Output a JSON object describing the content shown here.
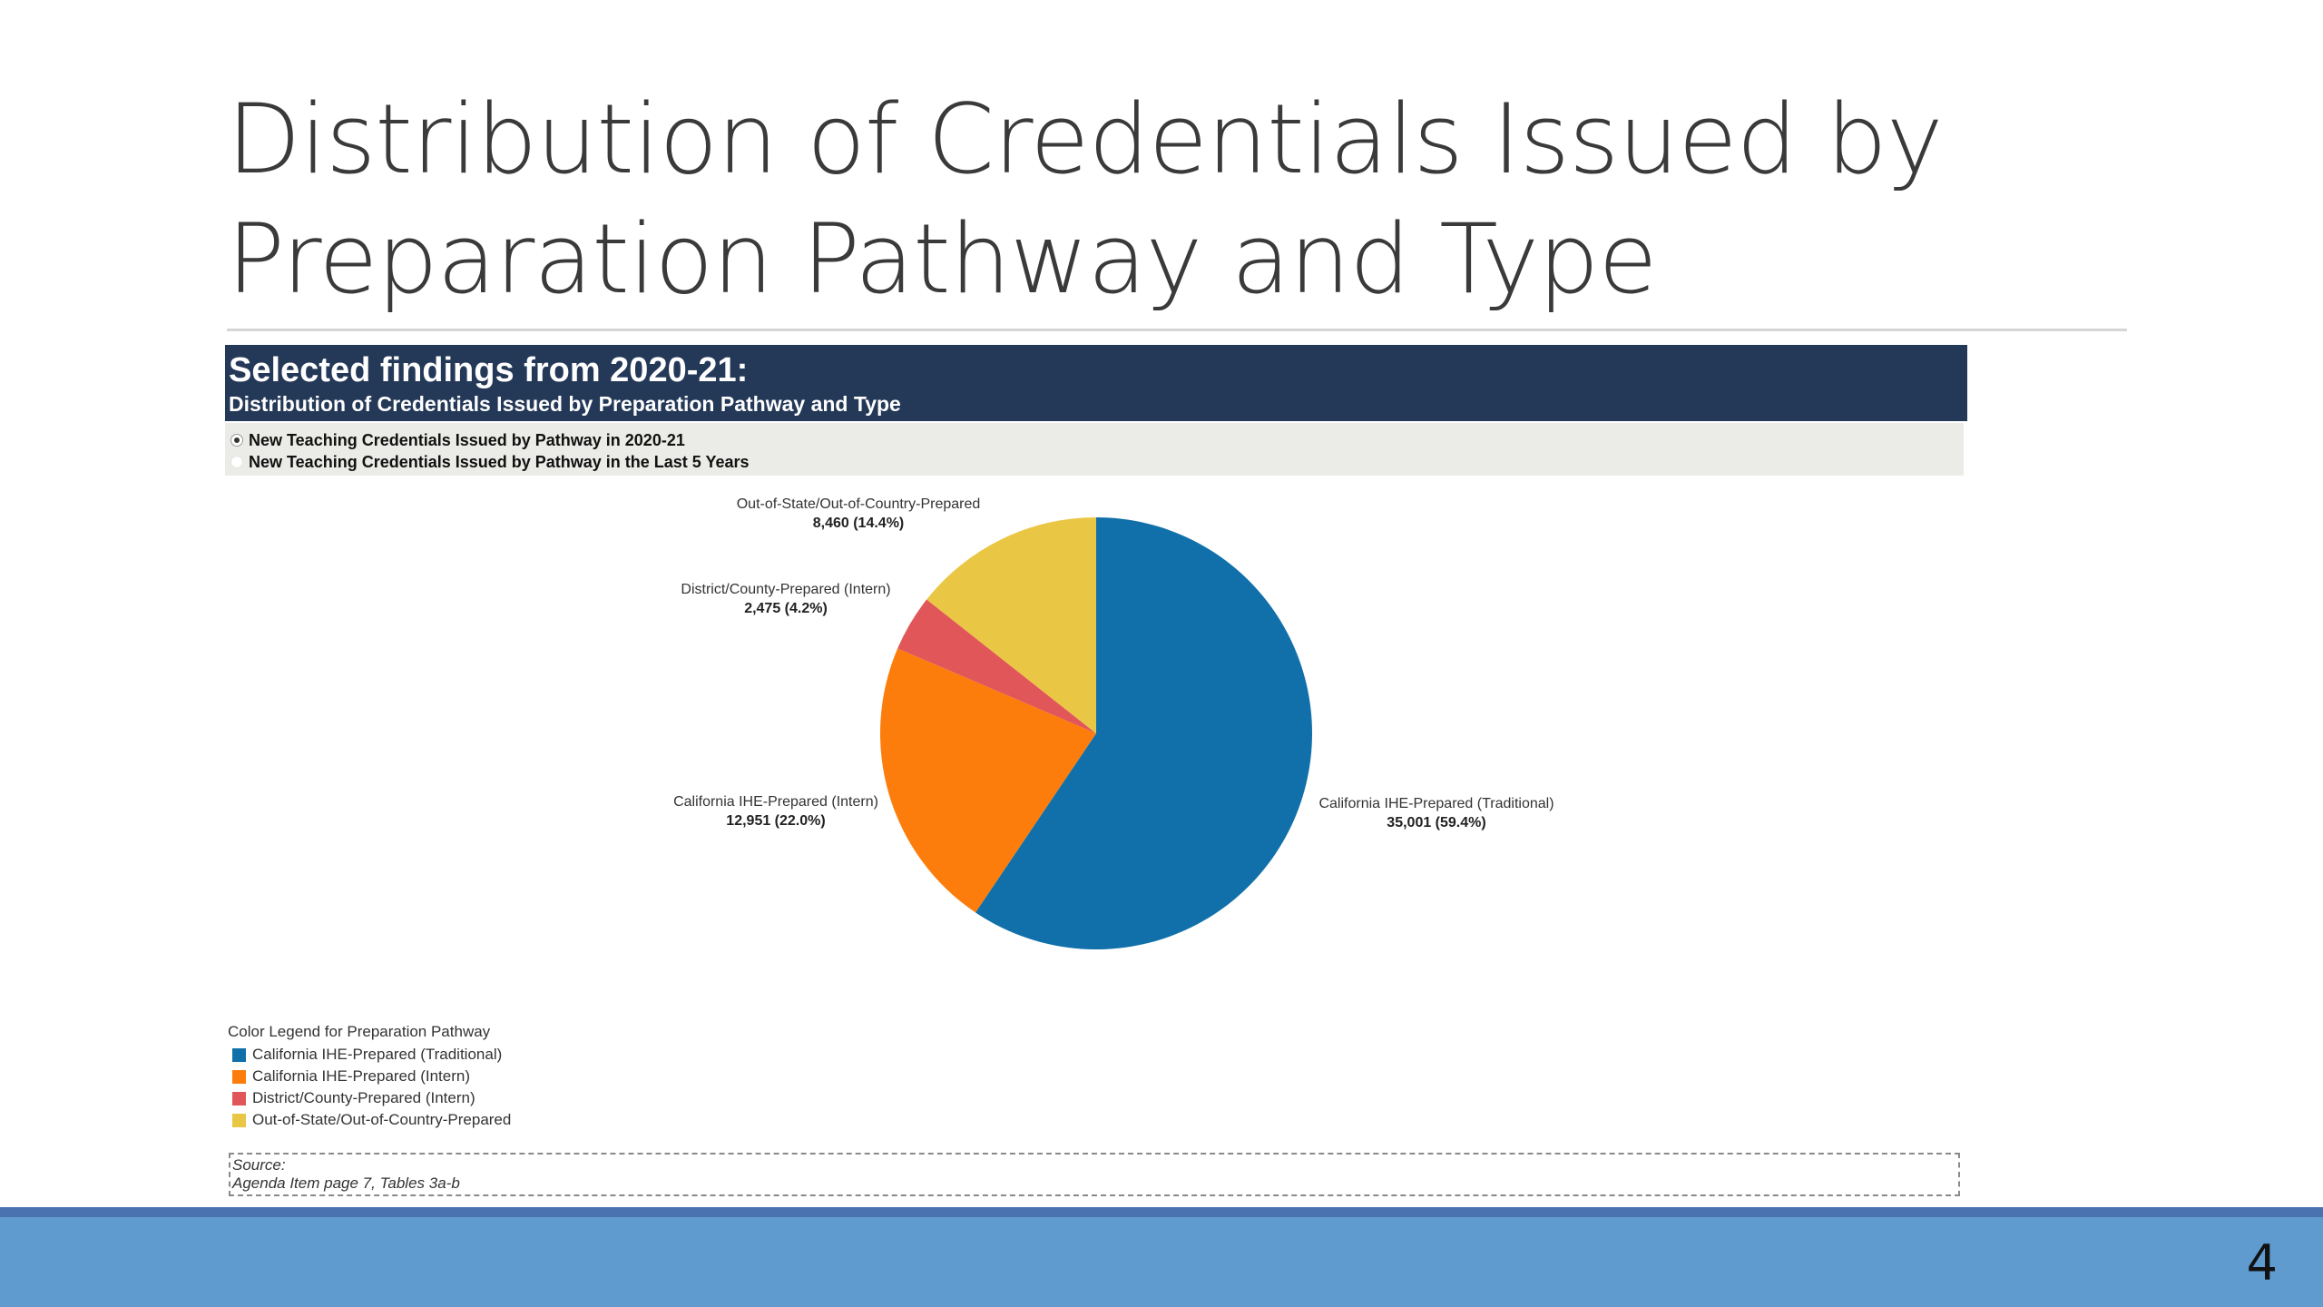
{
  "slide": {
    "title_line1": "Distribution of Credentials Issued by",
    "title_line2": "Preparation Pathway and Type",
    "page_number": "4"
  },
  "panel": {
    "heading": "Selected findings from 2020-21:",
    "subheading": "Distribution of Credentials Issued by Preparation Pathway and Type",
    "options": [
      {
        "label": "New Teaching Credentials Issued by Pathway in 2020-21",
        "selected": true
      },
      {
        "label": "New Teaching Credentials Issued by Pathway in the Last 5 Years",
        "selected": false
      }
    ]
  },
  "chart_data": {
    "type": "pie",
    "slices": [
      {
        "name": "California IHE-Prepared (Traditional)",
        "value": 35001,
        "value_label": "35,001 (59.4%)",
        "color": "#1170aa"
      },
      {
        "name": "California IHE-Prepared (Intern)",
        "value": 12951,
        "value_label": "12,951 (22.0%)",
        "color": "#fc7d0b"
      },
      {
        "name": "District/County-Prepared (Intern)",
        "value": 2475,
        "value_label": "2,475 (4.2%)",
        "color": "#e15759"
      },
      {
        "name": "Out-of-State/Out-of-Country-Prepared",
        "value": 8460,
        "value_label": "8,460 (14.4%)",
        "color": "#eac645"
      }
    ],
    "start": "12 o'clock",
    "direction": "clockwise"
  },
  "legend": {
    "title": "Color Legend for Preparation Pathway",
    "items": [
      {
        "label": "California IHE-Prepared (Traditional)",
        "color": "#1170aa"
      },
      {
        "label": "California IHE-Prepared (Intern)",
        "color": "#fc7d0b"
      },
      {
        "label": "District/County-Prepared (Intern)",
        "color": "#e15759"
      },
      {
        "label": "Out-of-State/Out-of-Country-Prepared",
        "color": "#eac645"
      }
    ]
  },
  "source": {
    "label": "Source:",
    "text": "Agenda Item page 7, Tables 3a-b"
  }
}
